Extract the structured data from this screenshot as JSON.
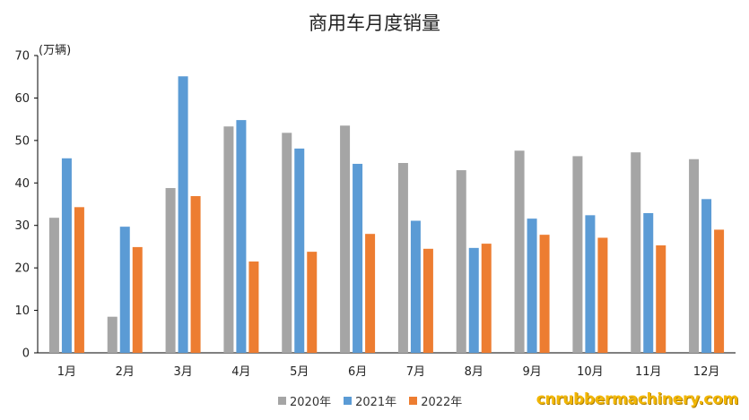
{
  "chart_data": {
    "type": "bar",
    "title": "商用车月度销量",
    "unit_label": "(万辆)",
    "categories": [
      "1月",
      "2月",
      "3月",
      "4月",
      "5月",
      "6月",
      "7月",
      "8月",
      "9月",
      "10月",
      "11月",
      "12月"
    ],
    "series": [
      {
        "name": "2020年",
        "color": "#a5a5a5",
        "values": [
          31.8,
          8.5,
          38.8,
          53.3,
          51.8,
          53.5,
          44.7,
          43.0,
          47.6,
          46.3,
          47.2,
          45.6
        ]
      },
      {
        "name": "2021年",
        "color": "#5b9bd5",
        "values": [
          45.8,
          29.7,
          65.1,
          54.8,
          48.1,
          44.5,
          31.1,
          24.7,
          31.6,
          32.4,
          32.9,
          36.2
        ]
      },
      {
        "name": "2022年",
        "color": "#ed7d31",
        "values": [
          34.3,
          24.9,
          36.9,
          21.5,
          23.8,
          28.0,
          24.5,
          25.7,
          27.8,
          27.1,
          25.3,
          29.0
        ]
      }
    ],
    "ylim": [
      0,
      70
    ],
    "yticks": [
      0,
      10,
      20,
      30,
      40,
      50,
      60,
      70
    ],
    "grid": false,
    "legend_position": "bottom"
  },
  "watermark": "cnrubbermachinery.com"
}
